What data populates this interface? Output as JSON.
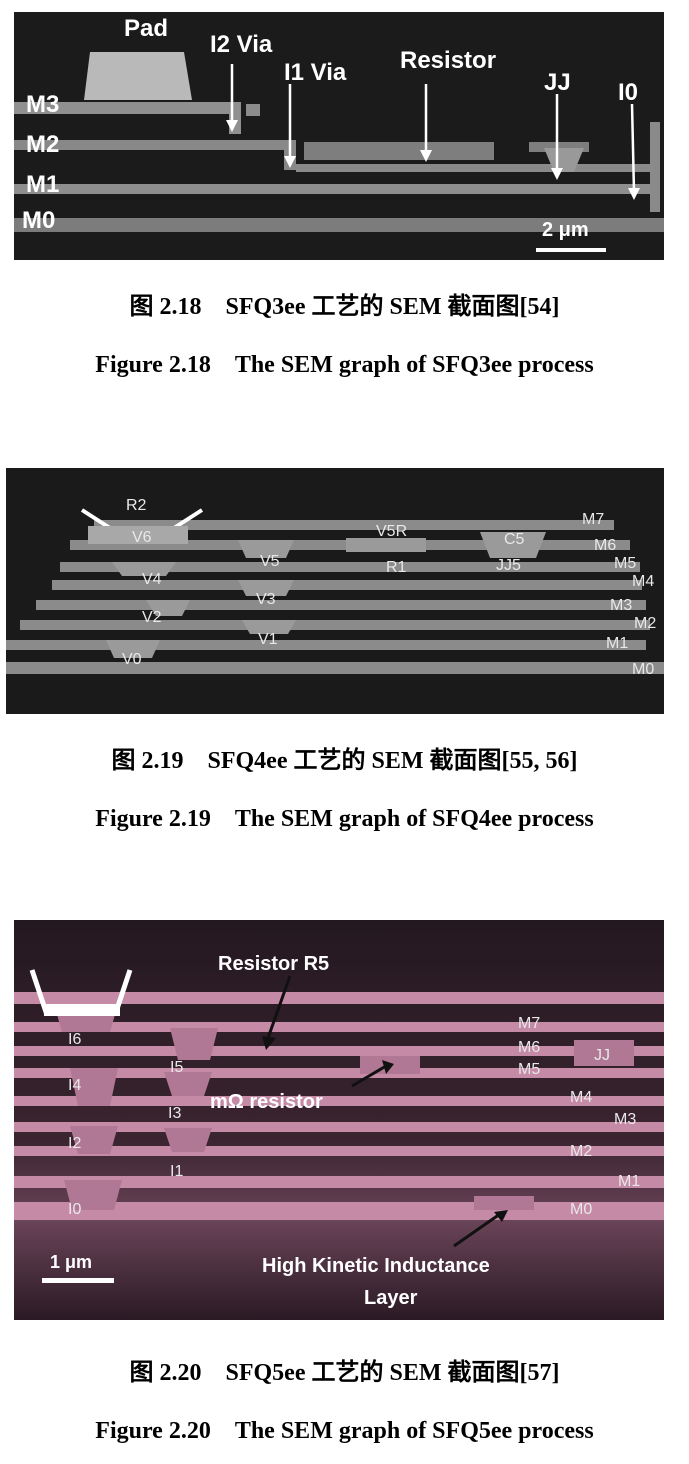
{
  "figures": [
    {
      "id": "2.18",
      "caption_cn": "图 2.18　SFQ3ee 工艺的 SEM 截面图[54]",
      "caption_en": "Figure 2.18　The SEM graph of SFQ3ee process",
      "labels": {
        "pad": "Pad",
        "i2_via": "I2 Via",
        "i1_via": "I1 Via",
        "resistor": "Resistor",
        "jj": "JJ",
        "i0": "I0",
        "m3": "M3",
        "m2": "M2",
        "m1": "M1",
        "m0": "M0",
        "scale": "2 μm"
      }
    },
    {
      "id": "2.19",
      "caption_cn": "图 2.19　SFQ4ee 工艺的 SEM 截面图[55, 56]",
      "caption_en": "Figure 2.19　The SEM graph of SFQ4ee process",
      "labels": {
        "r2": "R2",
        "v6": "V6",
        "v5": "V5",
        "v5r": "V5R",
        "r1": "R1",
        "c5": "C5",
        "jj5": "JJ5",
        "v4": "V4",
        "v3": "V3",
        "v2": "V2",
        "v1": "V1",
        "v0": "V0",
        "m7": "M7",
        "m6": "M6",
        "m5": "M5",
        "m4": "M4",
        "m3": "M3",
        "m2": "M2",
        "m1": "M1",
        "m0": "M0"
      }
    },
    {
      "id": "2.20",
      "caption_cn": "图 2.20　SFQ5ee 工艺的 SEM 截面图[57]",
      "caption_en": "Figure 2.20　The SEM graph of SFQ5ee process",
      "labels": {
        "resistor_r5": "Resistor R5",
        "m_ohm": "mΩ resistor",
        "hki_line1": "High Kinetic Inductance",
        "hki_line2": "Layer",
        "i6": "I6",
        "i5": "I5",
        "i4": "I4",
        "i3": "I3",
        "i2": "I2",
        "i1": "I1",
        "i0": "I0",
        "jj": "JJ",
        "m7": "M7",
        "m6": "M6",
        "m5": "M5",
        "m4": "M4",
        "m3": "M3",
        "m2": "M2",
        "m1": "M1",
        "m0": "M0",
        "scale": "1 μm"
      }
    }
  ],
  "colors": {
    "sem_bg": "#1c1c1c",
    "sem_layer": "#8a8a8a",
    "pink_bg": "#2a1822",
    "pink_layer": "#c98aa8"
  }
}
